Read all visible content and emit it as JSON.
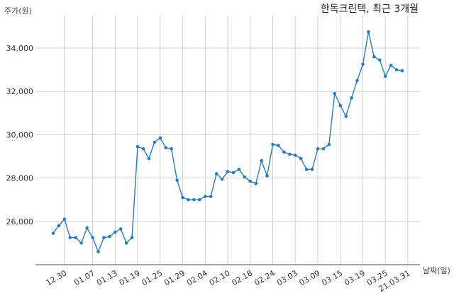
{
  "chart_data": {
    "type": "line",
    "title": "한독크린텍, 최근 3개월",
    "ylabel": "주가(원)",
    "xlabel": "날짜(일)",
    "ylim": [
      24000,
      35500
    ],
    "yticks": [
      26000,
      28000,
      30000,
      32000,
      34000
    ],
    "ytick_labels": [
      "26,000",
      "28,000",
      "30,000",
      "32,000",
      "34,000"
    ],
    "xtick_labels": [
      "12.30",
      "01.07",
      "01.13",
      "01.19",
      "01.25",
      "01.29",
      "02.04",
      "02.10",
      "02.18",
      "02.24",
      "03.03",
      "03.09",
      "03.15",
      "03.19",
      "03.25",
      "21.03.31"
    ],
    "xtick_index": [
      2,
      7,
      11,
      15,
      19,
      23,
      27,
      31,
      35,
      39,
      43,
      47,
      51,
      55,
      59,
      63
    ],
    "grid": true,
    "series": [
      {
        "values": [
          25450,
          25800,
          26100,
          25250,
          25250,
          25000,
          25700,
          25250,
          24600,
          25250,
          25300,
          25500,
          25650,
          25000,
          25250,
          29450,
          29350,
          28900,
          29650,
          29850,
          29400,
          29350,
          27900,
          27100,
          27000,
          27000,
          27000,
          27150,
          27150,
          28200,
          27950,
          28300,
          28250,
          28400,
          28050,
          27850,
          27750,
          28800,
          28100,
          29550,
          29500,
          29200,
          29100,
          29050,
          28900,
          28400,
          28400,
          29350,
          29350,
          29550,
          31900,
          31350,
          30850,
          31700,
          32500,
          33250,
          34750,
          33600,
          33450,
          32700,
          33200,
          33000,
          32950
        ],
        "color": "#2b7bb9"
      }
    ]
  }
}
